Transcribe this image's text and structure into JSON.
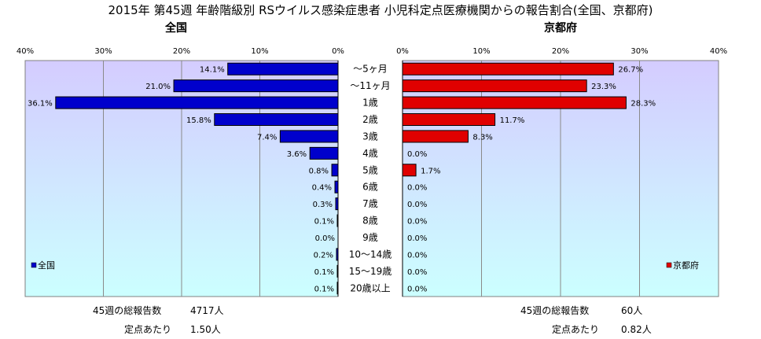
{
  "chart_data": [
    {
      "type": "bar",
      "title": "2015年 第45週 年齢階級別 RSウイルス感染症患者 小児科定点医療機関からの報告割合(全国、京都府)",
      "panel_title": "全国",
      "series": [
        {
          "name": "全国",
          "values": [
            14.1,
            21.0,
            36.1,
            15.8,
            7.4,
            3.6,
            0.8,
            0.4,
            0.3,
            0.1,
            0.0,
            0.2,
            0.1,
            0.1
          ],
          "color": "#0000cc"
        }
      ],
      "value_labels": [
        "14.1%",
        "21.0%",
        "36.1%",
        "15.8%",
        "7.4%",
        "3.6%",
        "0.8%",
        "0.4%",
        "0.3%",
        "0.1%",
        "0.0%",
        "0.2%",
        "0.1%",
        "0.1%"
      ],
      "xlim": [
        0,
        40
      ],
      "xticks": [
        "40%",
        "30%",
        "20%",
        "10%",
        "0%"
      ],
      "orientation": "horizontal-reversed",
      "grid": true,
      "legend": "bottom-left"
    },
    {
      "type": "bar",
      "panel_title": "京都府",
      "series": [
        {
          "name": "京都府",
          "values": [
            26.7,
            23.3,
            28.3,
            11.7,
            8.3,
            0.0,
            1.7,
            0.0,
            0.0,
            0.0,
            0.0,
            0.0,
            0.0,
            0.0
          ],
          "color": "#e00000"
        }
      ],
      "value_labels": [
        "26.7%",
        "23.3%",
        "28.3%",
        "11.7%",
        "8.3%",
        "0.0%",
        "1.7%",
        "0.0%",
        "0.0%",
        "0.0%",
        "0.0%",
        "0.0%",
        "0.0%",
        "0.0%"
      ],
      "xlim": [
        0,
        40
      ],
      "xticks": [
        "0%",
        "10%",
        "20%",
        "30%",
        "40%"
      ],
      "orientation": "horizontal",
      "grid": true,
      "legend": "bottom-right"
    }
  ],
  "categories": [
    "～5ヶ月",
    "～11ヶ月",
    "1歳",
    "2歳",
    "3歳",
    "4歳",
    "5歳",
    "6歳",
    "7歳",
    "8歳",
    "9歳",
    "10～14歳",
    "15～19歳",
    "20歳以上"
  ],
  "footer": {
    "national_total_label": "45週の総報告数",
    "national_total_value": "4717人",
    "national_per_label": "定点あたり",
    "national_per_value": "1.50人",
    "kyoto_total_label": "45週の総報告数",
    "kyoto_total_value": "60人",
    "kyoto_per_label": "定点あたり",
    "kyoto_per_value": "0.82人"
  },
  "colors": {
    "gradient_top": "#d4ccff",
    "gradient_bottom": "#ccffff"
  }
}
